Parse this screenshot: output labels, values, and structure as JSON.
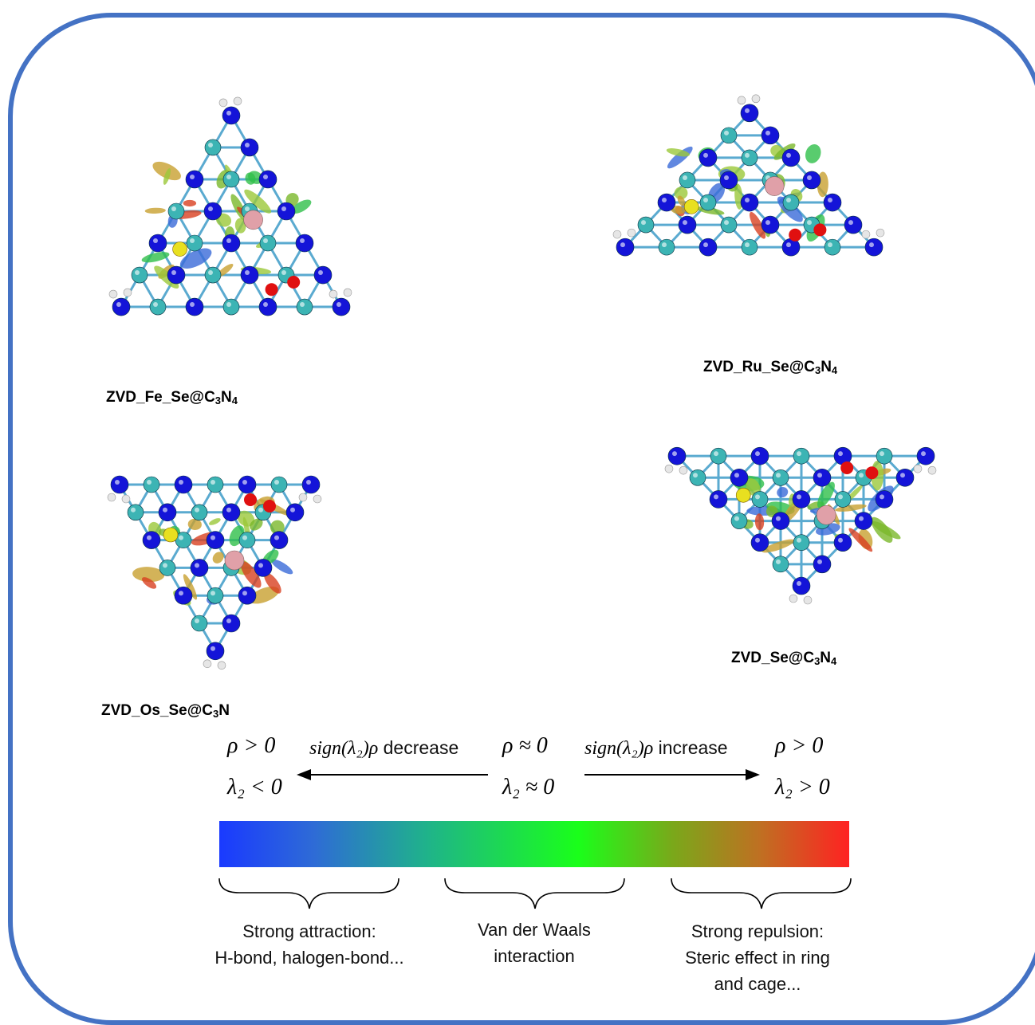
{
  "panels": [
    {
      "id": "fe",
      "label_main": "ZVD_Fe_Se@C",
      "sub1": "3",
      "mid": "N",
      "sub2": "4"
    },
    {
      "id": "ru",
      "label_main": "ZVD_Ru_Se@C",
      "sub1": "3",
      "mid": "N",
      "sub2": "4"
    },
    {
      "id": "os",
      "label_main": "ZVD_Os_Se@C",
      "sub1": "3",
      "mid": "N",
      "sub2": ""
    },
    {
      "id": "se",
      "label_main": "ZVD_Se@C",
      "sub1": "3",
      "mid": "N",
      "sub2": "4"
    }
  ],
  "legend": {
    "left_top": "ρ > 0",
    "left_bottom": "λ₂ < 0",
    "mid_top": "ρ ≈ 0",
    "mid_bottom": "λ₂ ≈ 0",
    "right_top": "ρ > 0",
    "right_bottom": "λ₂ > 0",
    "decrease": "sign(λ₂)ρ",
    "decrease_word": "decrease",
    "increase": "sign(λ₂)ρ",
    "increase_word": "increase"
  },
  "regions": [
    {
      "line1": "Strong attraction:",
      "line2": "H-bond, halogen-bond...",
      "line3": ""
    },
    {
      "line1": "Van der Waals",
      "line2": "interaction",
      "line3": ""
    },
    {
      "line1": "Strong repulsion:",
      "line2": "Steric effect in ring",
      "line3": "and cage..."
    }
  ],
  "colors": {
    "frame": "#4472c4",
    "nitrogen": "#1414d8",
    "carbon": "#3cb4b4",
    "hydrogen": "#e6e6e6",
    "oxygen": "#e01010",
    "selenium": "#e8e020",
    "metal": "#e0a0a8",
    "isosurface_green": "#7ab82a"
  }
}
